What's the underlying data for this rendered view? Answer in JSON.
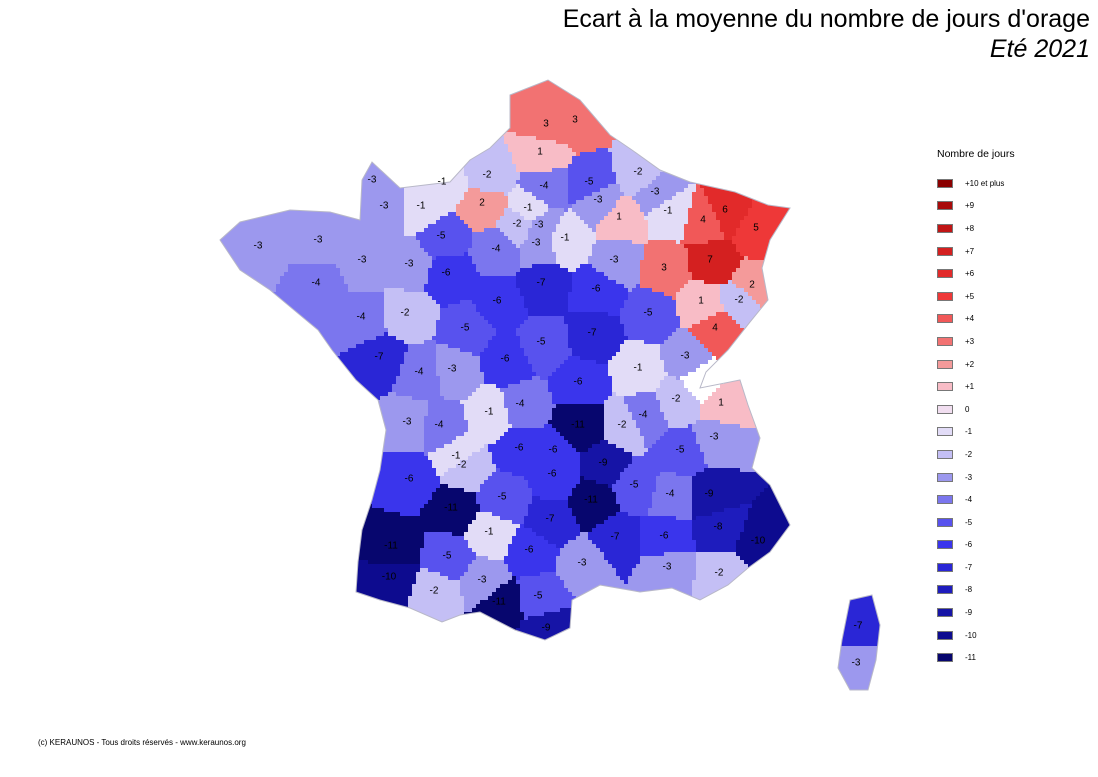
{
  "title": "Ecart à la moyenne du nombre de jours d'orage",
  "subtitle": "Eté 2021",
  "legend": {
    "title": "Nombre de jours",
    "items": [
      {
        "label": "+10 et plus",
        "value": 10,
        "color": "#8b0000"
      },
      {
        "label": "+9",
        "value": 9,
        "color": "#a80a0a"
      },
      {
        "label": "+8",
        "value": 8,
        "color": "#c01515"
      },
      {
        "label": "+7",
        "value": 7,
        "color": "#d42020"
      },
      {
        "label": "+6",
        "value": 6,
        "color": "#e22a2a"
      },
      {
        "label": "+5",
        "value": 5,
        "color": "#ee3838"
      },
      {
        "label": "+4",
        "value": 4,
        "color": "#f15858"
      },
      {
        "label": "+3",
        "value": 3,
        "color": "#f27272"
      },
      {
        "label": "+2",
        "value": 2,
        "color": "#f49a9a"
      },
      {
        "label": "+1",
        "value": 1,
        "color": "#f8bcc6"
      },
      {
        "label": "0",
        "value": 0,
        "color": "#f1def0"
      },
      {
        "label": "-1",
        "value": -1,
        "color": "#e2dcf7"
      },
      {
        "label": "-2",
        "value": -2,
        "color": "#c4bff5"
      },
      {
        "label": "-3",
        "value": -3,
        "color": "#9c98ee"
      },
      {
        "label": "-4",
        "value": -4,
        "color": "#7b76ee"
      },
      {
        "label": "-5",
        "value": -5,
        "color": "#5852ee"
      },
      {
        "label": "-6",
        "value": -6,
        "color": "#3a35ec"
      },
      {
        "label": "-7",
        "value": -7,
        "color": "#2a26d6"
      },
      {
        "label": "-8",
        "value": -8,
        "color": "#1e1cbd"
      },
      {
        "label": "-9",
        "value": -9,
        "color": "#1614a6"
      },
      {
        "label": "-10",
        "value": -10,
        "color": "#0d0b8f"
      },
      {
        "label": "-11",
        "value": -11,
        "color": "#07066e"
      }
    ]
  },
  "departments": [
    {
      "value": 3,
      "label": "3"
    },
    {
      "value": 3,
      "label": "3"
    },
    {
      "value": 1,
      "label": "1"
    },
    {
      "value": -2,
      "label": "-2"
    },
    {
      "value": -4,
      "label": "-4"
    },
    {
      "value": -5,
      "label": "-5"
    },
    {
      "value": -2,
      "label": "-2"
    },
    {
      "value": -1,
      "label": "-1"
    },
    {
      "value": -3,
      "label": "-3"
    },
    {
      "value": 2,
      "label": "2"
    },
    {
      "value": -1,
      "label": "-1"
    },
    {
      "value": -2,
      "label": "-2"
    },
    {
      "value": -3,
      "label": "-3"
    },
    {
      "value": -3,
      "label": "-3"
    },
    {
      "value": -1,
      "label": "-1"
    },
    {
      "value": 1,
      "label": "1"
    },
    {
      "value": -1,
      "label": "-1"
    },
    {
      "value": 4,
      "label": "4"
    },
    {
      "value": 6,
      "label": "6"
    },
    {
      "value": 5,
      "label": "5"
    },
    {
      "value": -3,
      "label": "-3"
    },
    {
      "value": -3,
      "label": "-3"
    },
    {
      "value": -3,
      "label": "-3"
    },
    {
      "value": -3,
      "label": "-3"
    },
    {
      "value": -5,
      "label": "-5"
    },
    {
      "value": -4,
      "label": "-4"
    },
    {
      "value": -3,
      "label": "-3"
    },
    {
      "value": 3,
      "label": "3"
    },
    {
      "value": 7,
      "label": "7"
    },
    {
      "value": 2,
      "label": "2"
    },
    {
      "value": -4,
      "label": "-4"
    },
    {
      "value": -6,
      "label": "-6"
    },
    {
      "value": -7,
      "label": "-7"
    },
    {
      "value": -6,
      "label": "-6"
    },
    {
      "value": 1,
      "label": "1"
    },
    {
      "value": -2,
      "label": "-2"
    },
    {
      "value": -4,
      "label": "-4"
    },
    {
      "value": -2,
      "label": "-2"
    },
    {
      "value": -6,
      "label": "-6"
    },
    {
      "value": -5,
      "label": "-5"
    },
    {
      "value": -5,
      "label": "-5"
    },
    {
      "value": -5,
      "label": "-5"
    },
    {
      "value": -7,
      "label": "-7"
    },
    {
      "value": 4,
      "label": "4"
    },
    {
      "value": -7,
      "label": "-7"
    },
    {
      "value": -4,
      "label": "-4"
    },
    {
      "value": -3,
      "label": "-3"
    },
    {
      "value": -6,
      "label": "-6"
    },
    {
      "value": -1,
      "label": "-1"
    },
    {
      "value": -3,
      "label": "-3"
    },
    {
      "value": -6,
      "label": "-6"
    },
    {
      "value": -1,
      "label": "-1"
    },
    {
      "value": -4,
      "label": "-4"
    },
    {
      "value": -2,
      "label": "-2"
    },
    {
      "value": 1,
      "label": "1"
    },
    {
      "value": -3,
      "label": "-3"
    },
    {
      "value": -4,
      "label": "-4"
    },
    {
      "value": -1,
      "label": "-1"
    },
    {
      "value": -4,
      "label": "-4"
    },
    {
      "value": -11,
      "label": "-11"
    },
    {
      "value": -2,
      "label": "-2"
    },
    {
      "value": -3,
      "label": "-3"
    },
    {
      "value": -2,
      "label": "-2"
    },
    {
      "value": -6,
      "label": "-6"
    },
    {
      "value": -6,
      "label": "-6"
    },
    {
      "value": -9,
      "label": "-9"
    },
    {
      "value": -5,
      "label": "-5"
    },
    {
      "value": -6,
      "label": "-6"
    },
    {
      "value": -5,
      "label": "-5"
    },
    {
      "value": -6,
      "label": "-6"
    },
    {
      "value": -11,
      "label": "-11"
    },
    {
      "value": -5,
      "label": "-5"
    },
    {
      "value": -4,
      "label": "-4"
    },
    {
      "value": -9,
      "label": "-9"
    },
    {
      "value": -11,
      "label": "-11"
    },
    {
      "value": -1,
      "label": "-1"
    },
    {
      "value": -7,
      "label": "-7"
    },
    {
      "value": -7,
      "label": "-7"
    },
    {
      "value": -6,
      "label": "-6"
    },
    {
      "value": -8,
      "label": "-8"
    },
    {
      "value": -10,
      "label": "-10"
    },
    {
      "value": -11,
      "label": "-11"
    },
    {
      "value": -5,
      "label": "-5"
    },
    {
      "value": -6,
      "label": "-6"
    },
    {
      "value": -3,
      "label": "-3"
    },
    {
      "value": -3,
      "label": "-3"
    },
    {
      "value": -2,
      "label": "-2"
    },
    {
      "value": -2,
      "label": "-2"
    },
    {
      "value": -3,
      "label": "-3"
    },
    {
      "value": -10,
      "label": "-10"
    },
    {
      "value": -11,
      "label": "-11"
    },
    {
      "value": -5,
      "label": "-5"
    },
    {
      "value": -9,
      "label": "-9"
    },
    {
      "value": -7,
      "label": "-7"
    },
    {
      "value": -3,
      "label": "-3"
    },
    {
      "value": -3,
      "label": "-3"
    },
    {
      "value": -1,
      "label": "-1"
    },
    {
      "value": -3,
      "label": "-3"
    },
    {
      "value": -3,
      "label": "-3"
    }
  ],
  "copyright": "(c) KERAUNOS - Tous droits réservés - www.keraunos.org"
}
